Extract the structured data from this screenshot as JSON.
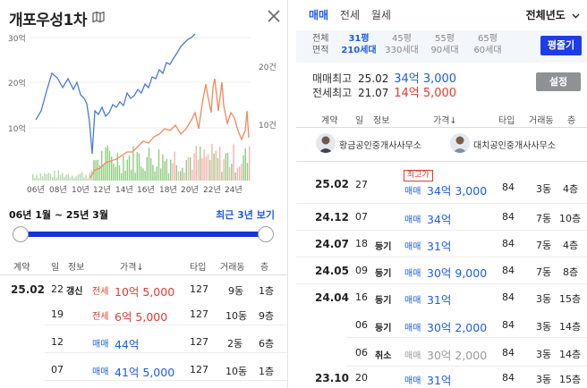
{
  "title": "개포우성1차",
  "chart": {
    "left_ticks": [
      "30억",
      "20억",
      "10억"
    ],
    "right_ticks": [
      "20건",
      "10건"
    ],
    "x_labels": [
      "06년",
      "08년",
      "10년",
      "12년",
      "14년",
      "16년",
      "18년",
      "20년",
      "22년",
      "24년"
    ]
  },
  "period_text": "06년 1월 ~ 25년 3월",
  "recent_link": "최근 3년 보기",
  "left_table": {
    "headers": [
      "계약",
      "일",
      "정보",
      "가격↓",
      "타입",
      "거래동",
      "층"
    ],
    "rows": [
      {
        "date": "25.02",
        "day": "22",
        "info": "갱신",
        "kind": "전세",
        "price": "10억 5,000",
        "type": "127",
        "dong": "9동",
        "floor": "1층"
      },
      {
        "date": "",
        "day": "19",
        "info": "",
        "kind": "전세",
        "price": "6억 5,000",
        "type": "127",
        "dong": "10동",
        "floor": "9층"
      },
      {
        "date": "",
        "day": "12",
        "info": "",
        "kind": "매매",
        "price": "44억",
        "type": "127",
        "dong": "2동",
        "floor": "6층"
      },
      {
        "date": "",
        "day": "07",
        "info": "",
        "kind": "매매",
        "price": "41억 5,000",
        "type": "127",
        "dong": "10동",
        "floor": "1층"
      }
    ]
  },
  "tabs": [
    "매매",
    "전세",
    "월세"
  ],
  "year_filter": "전체년도",
  "area_label_1": "전체",
  "area_label_2": "면적",
  "areas": [
    {
      "pyeong": "31평",
      "households": "210세대"
    },
    {
      "pyeong": "45평",
      "households": "330세대"
    },
    {
      "pyeong": "55평",
      "households": "90세대"
    },
    {
      "pyeong": "65평",
      "households": "60세대"
    }
  ],
  "pyeong_button": "평줄기",
  "max_sale": {
    "label": "매매최고",
    "date": "25.02",
    "price": "34억 3,000"
  },
  "max_lease": {
    "label": "전세최고",
    "date": "21.07",
    "price": "14억 5,000"
  },
  "settings_button": "설정",
  "right_table": {
    "headers": [
      "계약",
      "일",
      "정보",
      "가격↓",
      "타입",
      "거래동",
      "층"
    ],
    "agents": [
      "황금공인중개사사무소",
      "대치공인중개사사무소"
    ],
    "record_badge": "최고가",
    "rows": [
      {
        "date": "25.02",
        "day": "27",
        "info": "",
        "kind": "매매",
        "price": "34억 3,000",
        "type": "84",
        "dong": "3동",
        "floor": "4층"
      },
      {
        "date": "24.12",
        "day": "07",
        "info": "",
        "kind": "매매",
        "price": "34억",
        "type": "84",
        "dong": "7동",
        "floor": "10층"
      },
      {
        "date": "24.07",
        "day": "18",
        "info": "등기",
        "kind": "매매",
        "price": "31억",
        "type": "84",
        "dong": "7동",
        "floor": "4층"
      },
      {
        "date": "24.05",
        "day": "09",
        "info": "등기",
        "kind": "매매",
        "price": "30억 9,000",
        "type": "84",
        "dong": "7동",
        "floor": "8층"
      },
      {
        "date": "24.04",
        "day": "16",
        "info": "등기",
        "kind": "매매",
        "price": "31억",
        "type": "84",
        "dong": "3동",
        "floor": "15층"
      },
      {
        "date": "",
        "day": "06",
        "info": "등기",
        "kind": "매매",
        "price": "30억 2,000",
        "type": "84",
        "dong": "3동",
        "floor": "14층"
      },
      {
        "date": "",
        "day": "06",
        "info": "취소",
        "kind": "매매",
        "price": "30억 2,000",
        "type": "84",
        "dong": "3동",
        "floor": "14층"
      },
      {
        "date": "23.10",
        "day": "20",
        "info": "",
        "kind": "매매",
        "price": "31억",
        "type": "84",
        "dong": "3동",
        "floor": "15층"
      }
    ]
  },
  "colors": {
    "sale": "#1d5de5",
    "lease": "#e53a2f",
    "sale_line": "#4a78e0",
    "lease_line": "#f08a5d",
    "bar_green": "#7cc46c",
    "bar_red": "#f3a7a0",
    "accent": "#1732d8"
  }
}
